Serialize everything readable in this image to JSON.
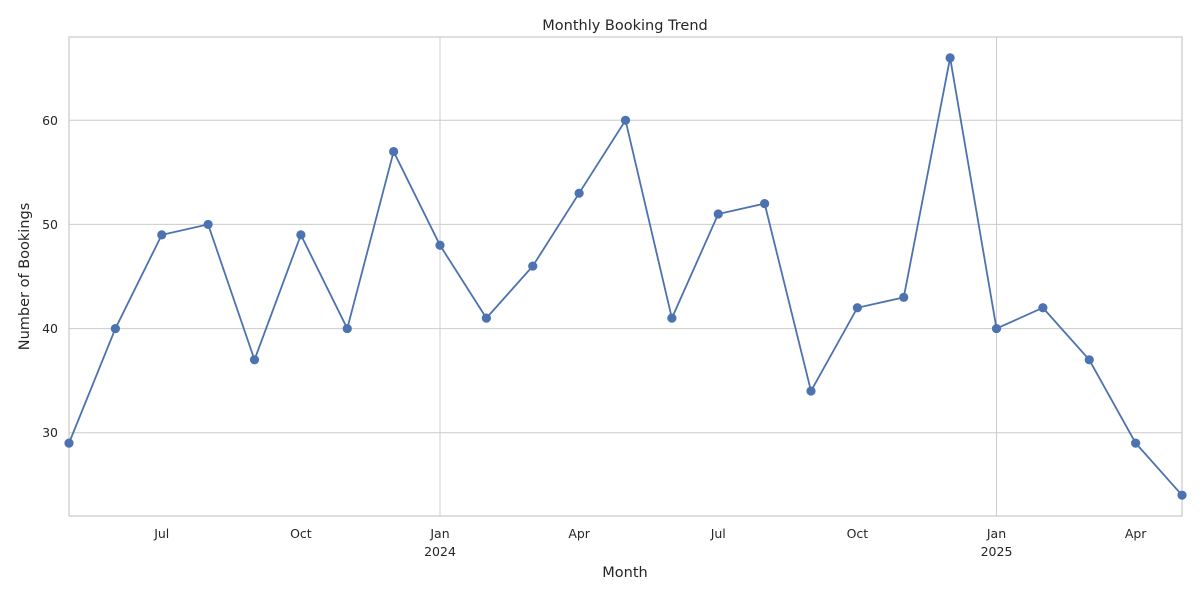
{
  "chart_data": {
    "type": "line",
    "title": "Monthly Booking Trend",
    "xlabel": "Month",
    "ylabel": "Number of Bookings",
    "x": [
      "2023-05",
      "2023-06",
      "2023-07",
      "2023-08",
      "2023-09",
      "2023-10",
      "2023-11",
      "2023-12",
      "2024-01",
      "2024-02",
      "2024-03",
      "2024-04",
      "2024-05",
      "2024-06",
      "2024-07",
      "2024-08",
      "2024-09",
      "2024-10",
      "2024-11",
      "2024-12",
      "2025-01",
      "2025-02",
      "2025-03",
      "2025-04",
      "2025-05"
    ],
    "series": [
      {
        "values": [
          29,
          40,
          49,
          50,
          37,
          49,
          40,
          57,
          48,
          41,
          46,
          53,
          60,
          41,
          51,
          52,
          34,
          42,
          43,
          66,
          40,
          42,
          37,
          29,
          24
        ],
        "color": "#4c72b0",
        "marker": "circle"
      }
    ],
    "xlim": [
      "2023-05",
      "2025-05"
    ],
    "ylim": [
      22,
      68
    ],
    "yticks": [
      30,
      40,
      50,
      60
    ],
    "xticks": [
      {
        "month": "2023-07",
        "label": "Jul",
        "sublabel": ""
      },
      {
        "month": "2023-10",
        "label": "Oct",
        "sublabel": ""
      },
      {
        "month": "2024-01",
        "label": "Jan",
        "sublabel": "2024"
      },
      {
        "month": "2024-04",
        "label": "Apr",
        "sublabel": ""
      },
      {
        "month": "2024-07",
        "label": "Jul",
        "sublabel": ""
      },
      {
        "month": "2024-10",
        "label": "Oct",
        "sublabel": ""
      },
      {
        "month": "2025-01",
        "label": "Jan",
        "sublabel": "2025"
      },
      {
        "month": "2025-04",
        "label": "Apr",
        "sublabel": ""
      }
    ],
    "grid": true,
    "major_xgrid": [
      "2024-01",
      "2025-01"
    ],
    "legend": "none"
  }
}
